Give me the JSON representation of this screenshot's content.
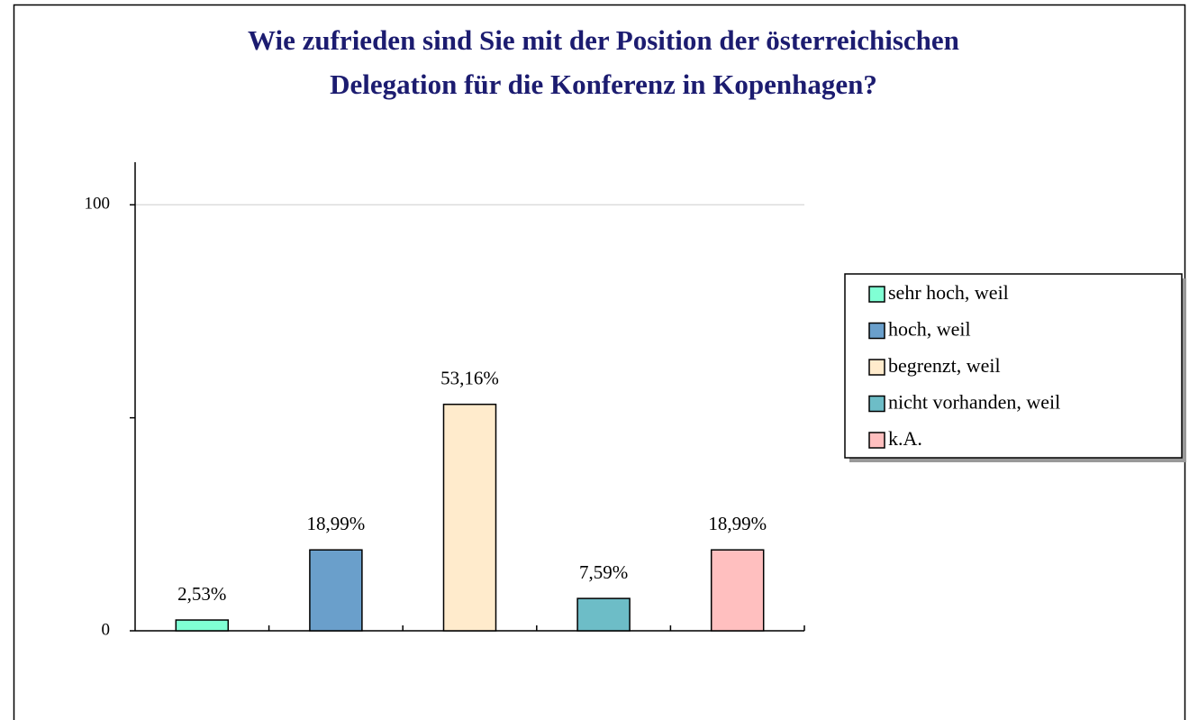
{
  "chart_data": {
    "type": "bar",
    "title": [
      "Wie zufrieden sind Sie mit der Position der österreichischen",
      "Delegation für die Konferenz in Kopenhagen?"
    ],
    "categories": [
      "sehr hoch, weil",
      "hoch, weil",
      "begrenzt, weil",
      "nicht vorhanden, weil",
      "k.A."
    ],
    "values": [
      2.53,
      18.99,
      53.16,
      7.59,
      18.99
    ],
    "value_labels": [
      "2,53%",
      "18,99%",
      "53,16%",
      "7,59%",
      "18,99%"
    ],
    "colors": [
      "#80ffd4",
      "#6a9fcb",
      "#ffebcc",
      "#6dbdc7",
      "#ffbfbf"
    ],
    "ylim": [
      0,
      110
    ],
    "yticks": [
      0,
      100
    ],
    "minor_yticks": [
      50
    ],
    "grid": true,
    "legend": "right"
  }
}
